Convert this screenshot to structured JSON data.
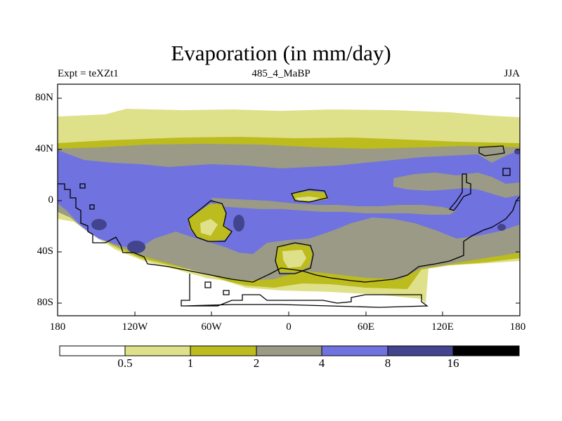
{
  "title": "Evaporation (in mm/day)",
  "subtitle_left": "Expt = teXZt1",
  "subtitle_center": "485_4_MaBP",
  "subtitle_right": "JJA",
  "y_ticks": [
    "80N",
    "40N",
    "0",
    "40S",
    "80S"
  ],
  "x_ticks": [
    "180",
    "120W",
    "60W",
    "0",
    "60E",
    "120E",
    "180"
  ],
  "colorbar": {
    "labels": [
      "0.5",
      "1",
      "2",
      "4",
      "8",
      "16"
    ],
    "colors": [
      "#ffffff",
      "#dfe08a",
      "#bcbc1e",
      "#9a9a86",
      "#7072e0",
      "#42448e",
      "#000000"
    ]
  },
  "map_colors": {
    "white": "#ffffff",
    "pale": "#dfe08a",
    "olive": "#bcbc1e",
    "gray": "#9a9a86",
    "blue": "#7072e0",
    "dark_blue": "#42448e"
  }
}
